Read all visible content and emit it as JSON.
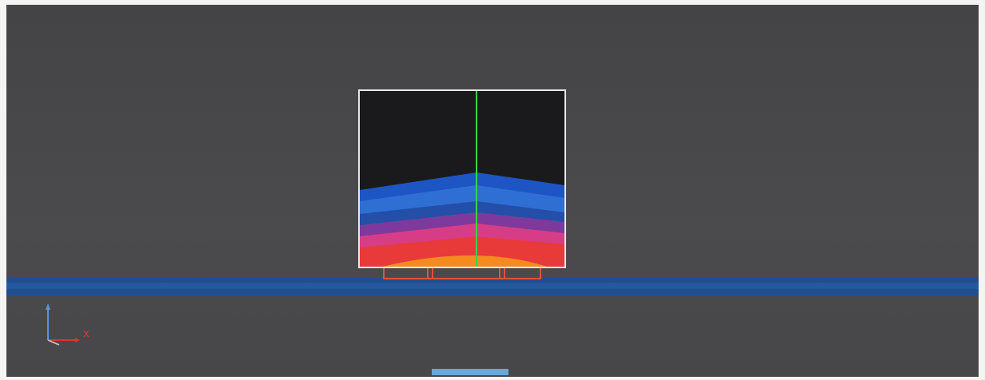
{
  "viewport": {
    "background": "#4a4a4c",
    "ground_band_color": "#1f4f93",
    "cross_section": {
      "colors": {
        "top": "#1a1a1c",
        "border": "#e8e8e8",
        "center_line": "#3fd04a",
        "bands": [
          "#1e55c4",
          "#3a7fd8",
          "#7d3a9c",
          "#d73d86",
          "#e93a3a",
          "#f58b1f"
        ]
      }
    },
    "footing": {
      "color": "#e0533a"
    }
  },
  "axis_triad": {
    "x_label": "x",
    "icon_names": [
      "axis-triad-icon"
    ],
    "x_color": "#e03030",
    "y_color": "#5f8fe0"
  },
  "bottom_tab": {
    "color": "#6aa6d8"
  }
}
